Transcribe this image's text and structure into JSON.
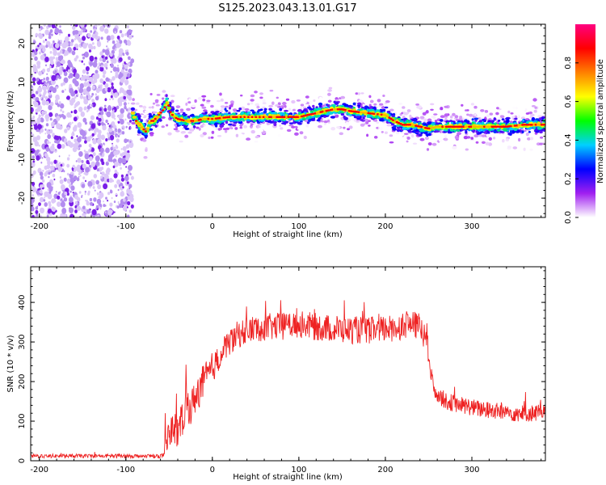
{
  "figure": {
    "title": "S125.2023.043.13.01.G17"
  },
  "chart_data": [
    {
      "type": "heatmap",
      "title": "",
      "xlabel": "Height of straight line (km)",
      "ylabel": "Frequency (Hz)",
      "xlim": [
        -210,
        385
      ],
      "ylim": [
        -25,
        25
      ],
      "xticks": [
        "-200",
        "-100",
        "0",
        "100",
        "200",
        "300"
      ],
      "yticks": [
        "-20",
        "-10",
        "0",
        "10",
        "20"
      ],
      "noise_region_x": [
        -210,
        -92
      ],
      "ridge": {
        "x": [
          -92,
          -88,
          -84,
          -80,
          -76,
          -72,
          -68,
          -64,
          -60,
          -56,
          -52,
          -48,
          -44,
          -40,
          -30,
          -20,
          -10,
          0,
          20,
          40,
          60,
          80,
          100,
          110,
          120,
          130,
          140,
          150,
          160,
          180,
          200,
          210,
          220,
          230,
          240,
          250,
          260,
          280,
          300,
          320,
          340,
          360,
          385
        ],
        "frequency": [
          2,
          0,
          -1,
          -2,
          -3,
          0,
          0,
          1,
          2,
          3,
          5,
          2,
          1,
          0.5,
          0,
          0,
          0.5,
          0.5,
          1,
          1,
          1,
          1,
          1,
          1.5,
          2,
          2.5,
          3,
          3,
          2.5,
          2,
          1.5,
          0,
          -1,
          -1,
          -1.5,
          -2,
          -1.5,
          -1.5,
          -1.5,
          -1.5,
          -1.5,
          -1,
          -1
        ]
      },
      "colorbar": {
        "label": "Normalized spectral amplitude",
        "range": [
          0,
          1
        ],
        "ticks": [
          "0.0",
          "0.2",
          "0.4",
          "0.6",
          "0.8"
        ],
        "colors": [
          "#ffffff",
          "#a020f0",
          "#0000ff",
          "#00d0ff",
          "#00ff00",
          "#ffff00",
          "#ff8000",
          "#ff0000",
          "#ff0080"
        ]
      }
    },
    {
      "type": "line",
      "title": "",
      "xlabel": "Height of straight line (km)",
      "ylabel": "SNR (10 * v/v)",
      "xlim": [
        -210,
        385
      ],
      "ylim": [
        0,
        490
      ],
      "xticks": [
        "-200",
        "-100",
        "0",
        "100",
        "200",
        "300"
      ],
      "yticks": [
        "0",
        "100",
        "200",
        "300",
        "400"
      ],
      "color": "#ee2222",
      "series": [
        {
          "x": [
            -210,
            -150,
            -100,
            -60,
            -55,
            -50,
            -45,
            -40,
            -35,
            -30,
            -25,
            -20,
            -10,
            0,
            10,
            20,
            30,
            50,
            80,
            100,
            130,
            160,
            190,
            210,
            225,
            240,
            248,
            252,
            256,
            260,
            270,
            290,
            310,
            330,
            350,
            370,
            385
          ],
          "y": [
            12,
            12,
            12,
            12,
            15,
            60,
            90,
            70,
            100,
            150,
            130,
            160,
            200,
            230,
            270,
            300,
            320,
            335,
            340,
            345,
            335,
            330,
            330,
            335,
            345,
            340,
            300,
            230,
            180,
            170,
            150,
            140,
            130,
            125,
            120,
            120,
            125
          ]
        }
      ]
    }
  ]
}
